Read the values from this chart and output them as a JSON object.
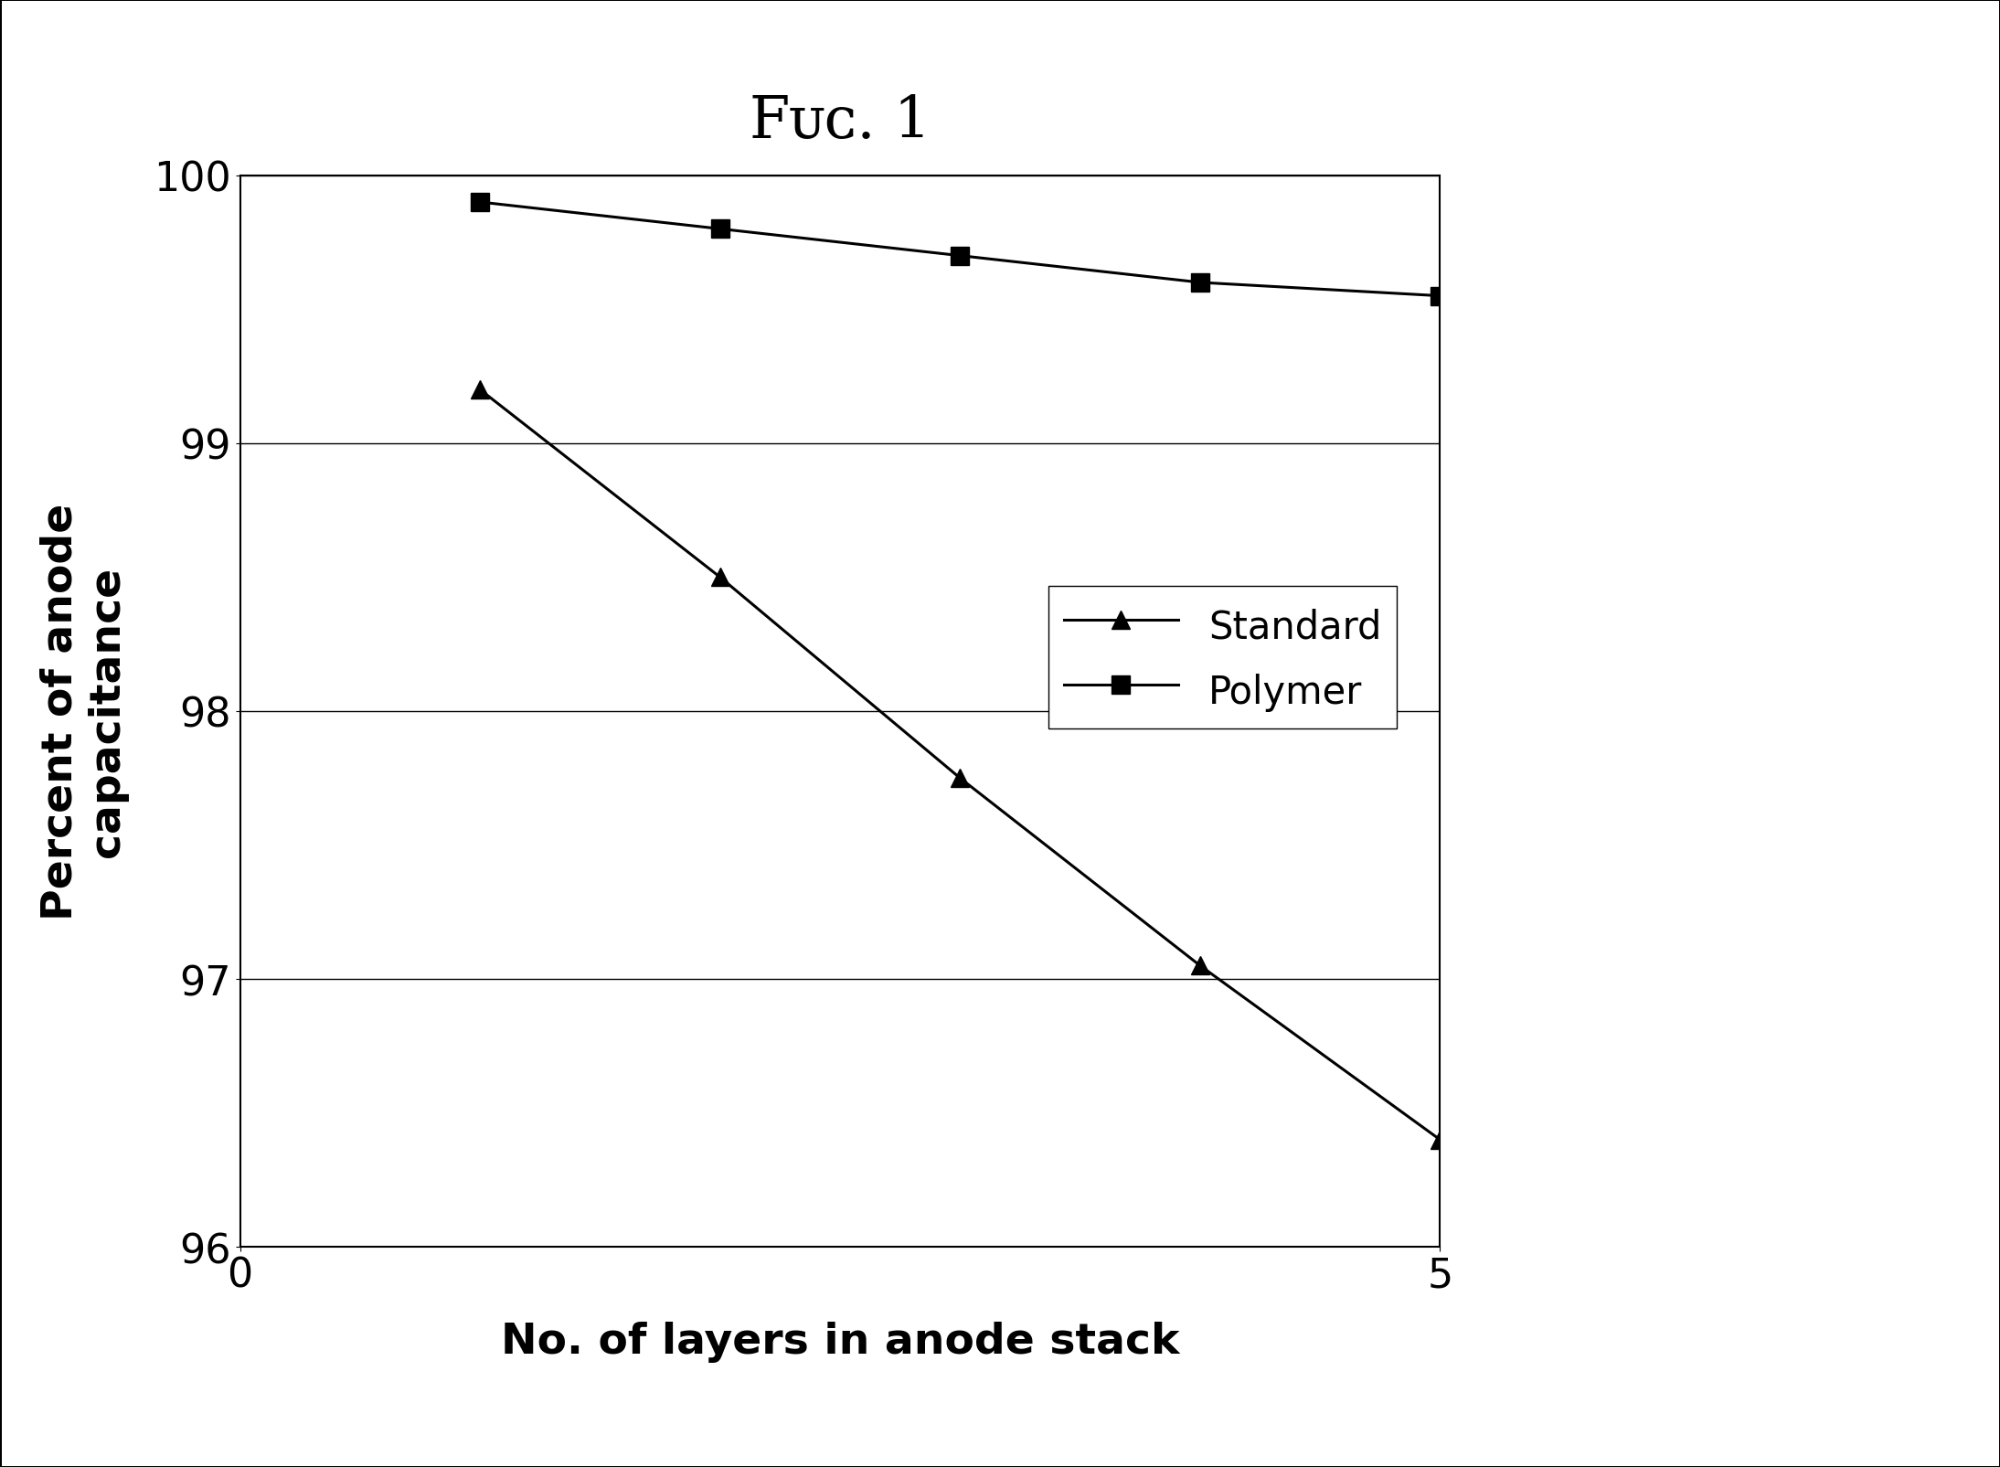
{
  "title": "Fᴜᴄ. 1",
  "xlabel": "No. of layers in anode stack",
  "ylabel": "Percent of anode\ncapacitance",
  "xlim": [
    0,
    5
  ],
  "ylim": [
    96,
    100
  ],
  "yticks": [
    96,
    97,
    98,
    99,
    100
  ],
  "xticks": [
    0,
    5
  ],
  "standard_x": [
    1,
    2,
    3,
    4,
    5
  ],
  "standard_y": [
    99.2,
    98.5,
    97.75,
    97.05,
    96.4
  ],
  "polymer_x": [
    1,
    2,
    3,
    4,
    5
  ],
  "polymer_y": [
    99.9,
    99.8,
    99.7,
    99.6,
    99.55
  ],
  "line_color": "#000000",
  "bg_color": "#ffffff",
  "title_fontsize": 46,
  "axis_label_fontsize": 34,
  "tick_fontsize": 32,
  "legend_fontsize": 30,
  "marker_size": 14,
  "line_width": 2.2
}
